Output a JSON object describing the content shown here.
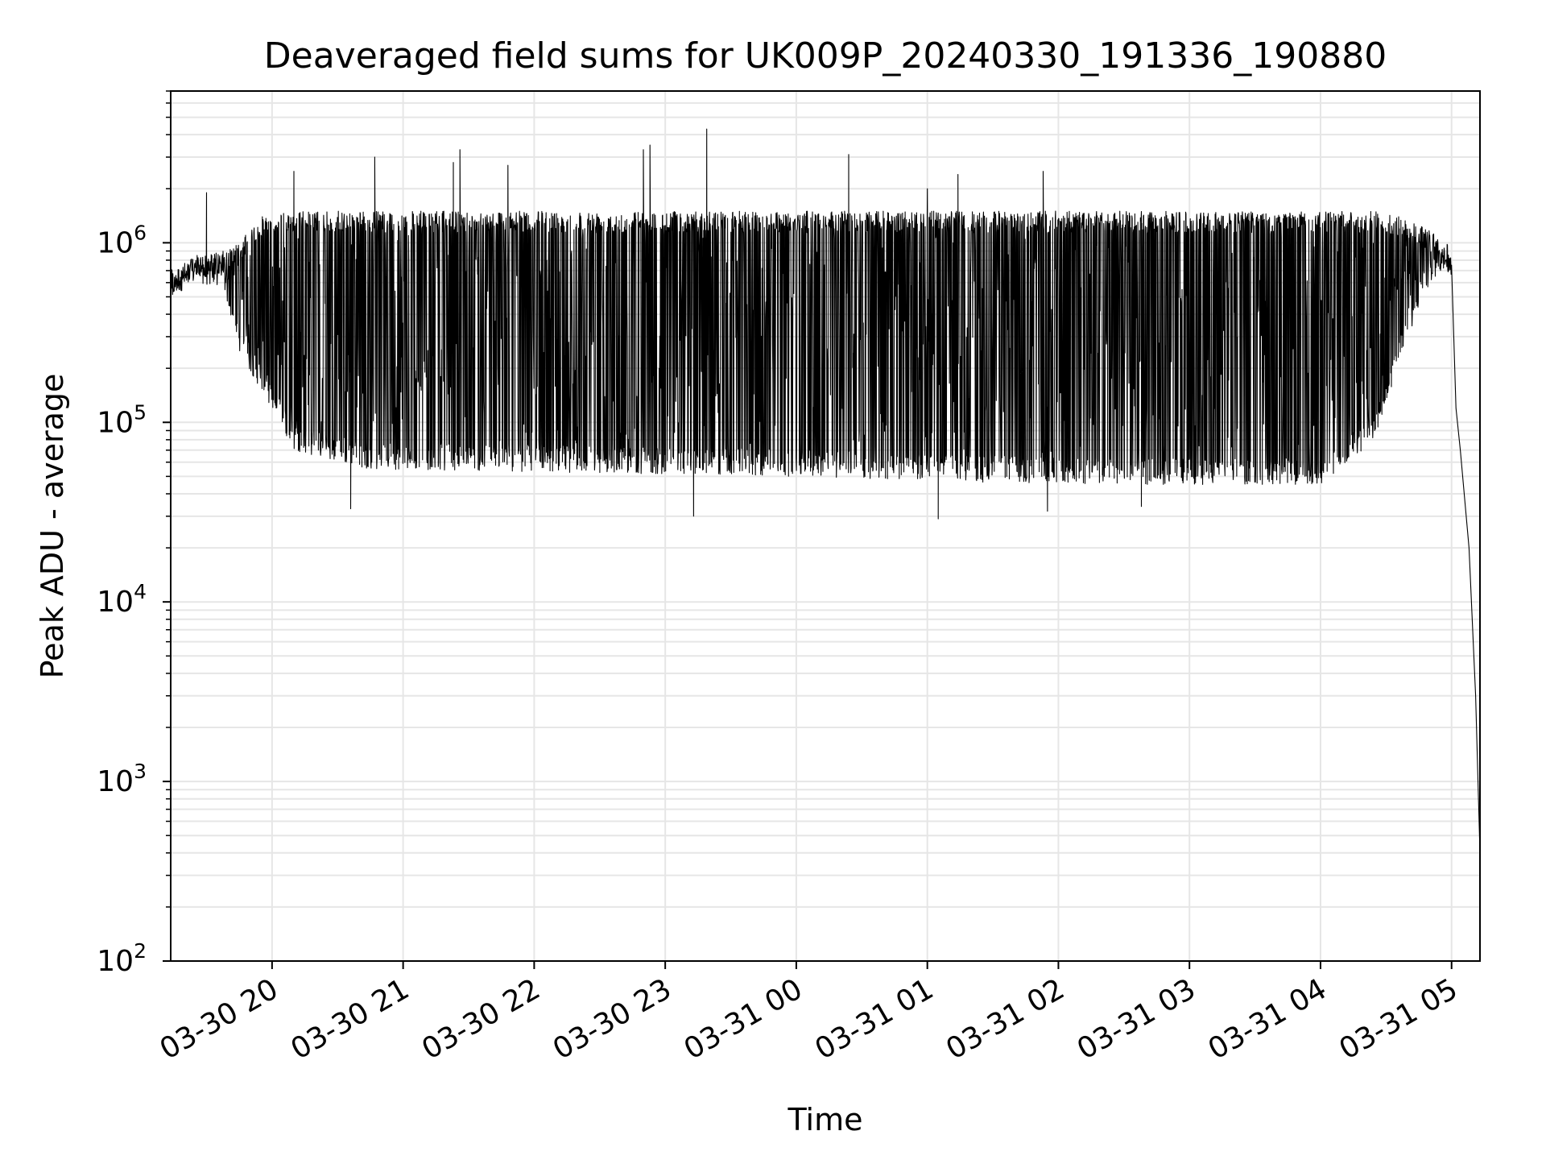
{
  "chart_data": {
    "type": "line",
    "title": "Deaveraged field sums for UK009P_20240330_191336_190880",
    "xlabel": "Time",
    "ylabel": "Peak ADU - average",
    "yscale": "log",
    "grid": true,
    "legend": "none",
    "xlim": [
      "2024-03-30T19:13:36",
      "2024-03-31T05:13:00"
    ],
    "ylim": [
      100,
      7000000
    ],
    "x_ticks": [
      "03-30 20",
      "03-30 21",
      "03-30 22",
      "03-30 23",
      "03-31 00",
      "03-31 01",
      "03-31 02",
      "03-31 03",
      "03-31 04",
      "03-31 05"
    ],
    "x_tick_times": [
      "2024-03-30T20:00:00",
      "2024-03-30T21:00:00",
      "2024-03-30T22:00:00",
      "2024-03-30T23:00:00",
      "2024-03-31T00:00:00",
      "2024-03-31T01:00:00",
      "2024-03-31T02:00:00",
      "2024-03-31T03:00:00",
      "2024-03-31T04:00:00",
      "2024-03-31T05:00:00"
    ],
    "y_ticks": [
      {
        "value": 100,
        "base": "10",
        "exp": "2"
      },
      {
        "value": 1000,
        "base": "10",
        "exp": "3"
      },
      {
        "value": 10000,
        "base": "10",
        "exp": "4"
      },
      {
        "value": 100000,
        "base": "10",
        "exp": "5"
      },
      {
        "value": 1000000,
        "base": "10",
        "exp": "6"
      }
    ],
    "line_color": "#000000",
    "grid_color": "#e6e6e6",
    "series": [
      {
        "envelope_upper": [
          {
            "t": "2024-03-30T19:14:00",
            "v": 650000
          },
          {
            "t": "2024-03-30T19:25:00",
            "v": 850000
          },
          {
            "t": "2024-03-30T19:38:00",
            "v": 900000
          },
          {
            "t": "2024-03-30T19:45:00",
            "v": 1000000
          },
          {
            "t": "2024-03-30T19:55:00",
            "v": 1400000
          },
          {
            "t": "2024-03-30T20:10:00",
            "v": 1500000
          },
          {
            "t": "2024-03-30T21:00:00",
            "v": 1500000
          },
          {
            "t": "2024-03-31T00:00:00",
            "v": 1500000
          },
          {
            "t": "2024-03-31T03:00:00",
            "v": 1500000
          },
          {
            "t": "2024-03-31T04:30:00",
            "v": 1500000
          },
          {
            "t": "2024-03-31T04:50:00",
            "v": 1200000
          },
          {
            "t": "2024-03-31T04:58:00",
            "v": 900000
          },
          {
            "t": "2024-03-31T05:00:00",
            "v": 800000
          }
        ],
        "envelope_lower": [
          {
            "t": "2024-03-30T19:14:00",
            "v": 500000
          },
          {
            "t": "2024-03-30T19:25:00",
            "v": 600000
          },
          {
            "t": "2024-03-30T19:38:00",
            "v": 550000
          },
          {
            "t": "2024-03-30T19:45:00",
            "v": 250000
          },
          {
            "t": "2024-03-30T19:55:00",
            "v": 150000
          },
          {
            "t": "2024-03-30T20:10:00",
            "v": 70000
          },
          {
            "t": "2024-03-30T20:30:00",
            "v": 60000
          },
          {
            "t": "2024-03-30T20:45:00",
            "v": 55000
          },
          {
            "t": "2024-03-31T00:00:00",
            "v": 50000
          },
          {
            "t": "2024-03-31T02:00:00",
            "v": 45000
          },
          {
            "t": "2024-03-31T04:00:00",
            "v": 45000
          },
          {
            "t": "2024-03-31T04:25:00",
            "v": 80000
          },
          {
            "t": "2024-03-31T04:40:00",
            "v": 300000
          },
          {
            "t": "2024-03-31T04:50:00",
            "v": 600000
          },
          {
            "t": "2024-03-31T04:58:00",
            "v": 700000
          },
          {
            "t": "2024-03-31T05:00:00",
            "v": 700000
          }
        ],
        "tail": [
          {
            "t": "2024-03-31T05:00:00",
            "v": 750000
          },
          {
            "t": "2024-03-31T05:02:00",
            "v": 120000
          },
          {
            "t": "2024-03-31T05:04:00",
            "v": 70000
          },
          {
            "t": "2024-03-31T05:08:00",
            "v": 20000
          },
          {
            "t": "2024-03-31T05:11:00",
            "v": 3000
          },
          {
            "t": "2024-03-31T05:13:00",
            "v": 400
          }
        ],
        "spikes": [
          {
            "t": "2024-03-30T19:30:00",
            "v": 1900000
          },
          {
            "t": "2024-03-30T20:10:00",
            "v": 2500000
          },
          {
            "t": "2024-03-30T20:47:00",
            "v": 3000000
          },
          {
            "t": "2024-03-30T21:23:00",
            "v": 2800000
          },
          {
            "t": "2024-03-30T21:26:00",
            "v": 3300000
          },
          {
            "t": "2024-03-30T21:48:00",
            "v": 2700000
          },
          {
            "t": "2024-03-30T22:50:00",
            "v": 3300000
          },
          {
            "t": "2024-03-30T22:53:00",
            "v": 3500000
          },
          {
            "t": "2024-03-30T23:19:00",
            "v": 4300000
          },
          {
            "t": "2024-03-31T00:24:00",
            "v": 3100000
          },
          {
            "t": "2024-03-31T01:00:00",
            "v": 2000000
          },
          {
            "t": "2024-03-31T01:14:00",
            "v": 2400000
          },
          {
            "t": "2024-03-31T01:53:00",
            "v": 2500000
          }
        ],
        "dips": [
          {
            "t": "2024-03-30T20:36:00",
            "v": 33000
          },
          {
            "t": "2024-03-30T23:13:00",
            "v": 30000
          },
          {
            "t": "2024-03-31T01:05:00",
            "v": 29000
          },
          {
            "t": "2024-03-31T01:55:00",
            "v": 32000
          },
          {
            "t": "2024-03-31T02:38:00",
            "v": 34000
          }
        ]
      }
    ]
  }
}
